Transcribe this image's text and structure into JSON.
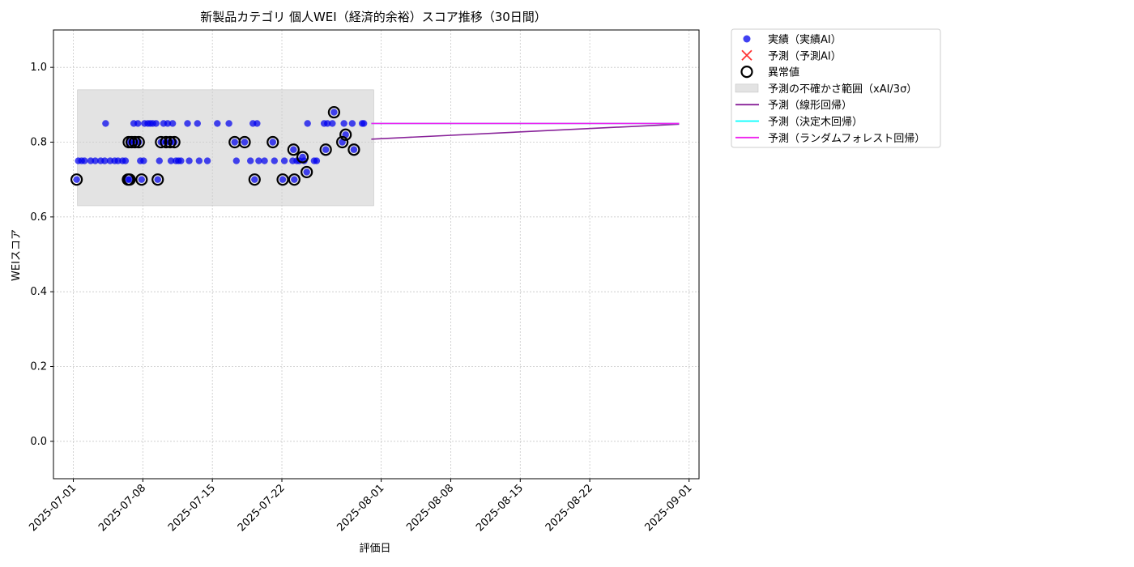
{
  "chart_data": {
    "type": "scatter",
    "title": "新製品カテゴリ 個人WEI（経済的余裕）スコア推移（30日間）",
    "xlabel": "評価日",
    "ylabel": "WEIスコア",
    "xlim": [
      "2025-06-29",
      "2025-09-02"
    ],
    "ylim": [
      -0.1,
      1.1
    ],
    "yticks": [
      0.0,
      0.2,
      0.4,
      0.6,
      0.8,
      1.0
    ],
    "xticks": [
      "2025-07-01",
      "2025-07-08",
      "2025-07-15",
      "2025-07-22",
      "2025-08-01",
      "2025-08-08",
      "2025-08-15",
      "2025-08-22",
      "2025-09-01"
    ],
    "grid": true,
    "legend_position": "outside-upper-right",
    "uncertainty_band": {
      "x_start": "2025-07-01 10:00",
      "x_end": "2025-07-31 06:00",
      "y_low": 0.63,
      "y_high": 0.94,
      "label": "予測の不確かさ範囲（xAI/3σ）",
      "color": "#cccccc"
    },
    "series": [
      {
        "name": "実績（実績AI）",
        "kind": "scatter",
        "color": "#0000ee",
        "points": [
          [
            "2025-07-01 08:00",
            0.7
          ],
          [
            "2025-07-01 12:00",
            0.75
          ],
          [
            "2025-07-01 20:00",
            0.75
          ],
          [
            "2025-07-02 03:00",
            0.75
          ],
          [
            "2025-07-02 18:00",
            0.75
          ],
          [
            "2025-07-03 05:00",
            0.75
          ],
          [
            "2025-07-03 18:00",
            0.75
          ],
          [
            "2025-07-04 04:00",
            0.75
          ],
          [
            "2025-07-04 06:00",
            0.85
          ],
          [
            "2025-07-04 17:00",
            0.75
          ],
          [
            "2025-07-05 04:00",
            0.75
          ],
          [
            "2025-07-05 12:00",
            0.75
          ],
          [
            "2025-07-05 23:00",
            0.75
          ],
          [
            "2025-07-06 06:00",
            0.75
          ],
          [
            "2025-07-06 12:00",
            0.7
          ],
          [
            "2025-07-06 16:00",
            0.7
          ],
          [
            "2025-07-06 14:00",
            0.8
          ],
          [
            "2025-07-06 21:00",
            0.8
          ],
          [
            "2025-07-07 02:00",
            0.85
          ],
          [
            "2025-07-07 05:00",
            0.8
          ],
          [
            "2025-07-07 12:00",
            0.85
          ],
          [
            "2025-07-07 14:00",
            0.8
          ],
          [
            "2025-07-07 18:00",
            0.75
          ],
          [
            "2025-07-07 21:00",
            0.7
          ],
          [
            "2025-07-08 02:00",
            0.75
          ],
          [
            "2025-07-08 04:00",
            0.85
          ],
          [
            "2025-07-08 12:00",
            0.85
          ],
          [
            "2025-07-08 18:00",
            0.85
          ],
          [
            "2025-07-09 00:00",
            0.85
          ],
          [
            "2025-07-09 08:00",
            0.85
          ],
          [
            "2025-07-09 12:00",
            0.7
          ],
          [
            "2025-07-09 16:00",
            0.75
          ],
          [
            "2025-07-09 20:00",
            0.8
          ],
          [
            "2025-07-10 02:00",
            0.85
          ],
          [
            "2025-07-10 08:00",
            0.8
          ],
          [
            "2025-07-10 12:00",
            0.85
          ],
          [
            "2025-07-10 18:00",
            0.8
          ],
          [
            "2025-07-10 20:00",
            0.75
          ],
          [
            "2025-07-11 00:00",
            0.85
          ],
          [
            "2025-07-11 04:00",
            0.8
          ],
          [
            "2025-07-11 08:00",
            0.75
          ],
          [
            "2025-07-11 14:00",
            0.75
          ],
          [
            "2025-07-11 20:00",
            0.75
          ],
          [
            "2025-07-12 12:00",
            0.85
          ],
          [
            "2025-07-12 16:00",
            0.75
          ],
          [
            "2025-07-13 12:00",
            0.85
          ],
          [
            "2025-07-13 16:00",
            0.75
          ],
          [
            "2025-07-14 12:00",
            0.75
          ],
          [
            "2025-07-15 12:00",
            0.85
          ],
          [
            "2025-07-16 16:00",
            0.85
          ],
          [
            "2025-07-17 06:00",
            0.8
          ],
          [
            "2025-07-17 10:00",
            0.75
          ],
          [
            "2025-07-18 06:00",
            0.8
          ],
          [
            "2025-07-18 20:00",
            0.75
          ],
          [
            "2025-07-19 02:00",
            0.85
          ],
          [
            "2025-07-19 06:00",
            0.7
          ],
          [
            "2025-07-19 12:00",
            0.85
          ],
          [
            "2025-07-19 16:00",
            0.75
          ],
          [
            "2025-07-20 06:00",
            0.75
          ],
          [
            "2025-07-21 02:00",
            0.8
          ],
          [
            "2025-07-21 06:00",
            0.75
          ],
          [
            "2025-07-22 02:00",
            0.7
          ],
          [
            "2025-07-22 06:00",
            0.75
          ],
          [
            "2025-07-23 02:00",
            0.75
          ],
          [
            "2025-07-23 04:00",
            0.78
          ],
          [
            "2025-07-23 06:00",
            0.7
          ],
          [
            "2025-07-23 12:00",
            0.75
          ],
          [
            "2025-07-23 18:00",
            0.75
          ],
          [
            "2025-07-24 02:00",
            0.76
          ],
          [
            "2025-07-24 06:00",
            0.75
          ],
          [
            "2025-07-24 12:00",
            0.72
          ],
          [
            "2025-07-24 14:00",
            0.85
          ],
          [
            "2025-07-25 06:00",
            0.75
          ],
          [
            "2025-07-25 12:00",
            0.75
          ],
          [
            "2025-07-26 06:00",
            0.85
          ],
          [
            "2025-07-26 10:00",
            0.78
          ],
          [
            "2025-07-26 14:00",
            0.85
          ],
          [
            "2025-07-27 02:00",
            0.85
          ],
          [
            "2025-07-27 06:00",
            0.88
          ],
          [
            "2025-07-28 02:00",
            0.8
          ],
          [
            "2025-07-28 06:00",
            0.85
          ],
          [
            "2025-07-28 10:00",
            0.82
          ],
          [
            "2025-07-29 02:00",
            0.85
          ],
          [
            "2025-07-29 06:00",
            0.78
          ],
          [
            "2025-07-30 02:00",
            0.85
          ],
          [
            "2025-07-30 06:00",
            0.85
          ]
        ]
      },
      {
        "name": "予測（予測AI）",
        "kind": "scatter",
        "color": "#ff3333",
        "points": []
      },
      {
        "name": "異常値",
        "kind": "scatter-outline",
        "color": "#000000",
        "points": [
          [
            "2025-07-01 08:00",
            0.7
          ],
          [
            "2025-07-06 12:00",
            0.7
          ],
          [
            "2025-07-06 16:00",
            0.7
          ],
          [
            "2025-07-06 14:00",
            0.8
          ],
          [
            "2025-07-06 21:00",
            0.8
          ],
          [
            "2025-07-07 05:00",
            0.8
          ],
          [
            "2025-07-07 14:00",
            0.8
          ],
          [
            "2025-07-07 21:00",
            0.7
          ],
          [
            "2025-07-09 12:00",
            0.7
          ],
          [
            "2025-07-09 20:00",
            0.8
          ],
          [
            "2025-07-10 08:00",
            0.8
          ],
          [
            "2025-07-10 18:00",
            0.8
          ],
          [
            "2025-07-11 04:00",
            0.8
          ],
          [
            "2025-07-17 06:00",
            0.8
          ],
          [
            "2025-07-18 06:00",
            0.8
          ],
          [
            "2025-07-19 06:00",
            0.7
          ],
          [
            "2025-07-21 02:00",
            0.8
          ],
          [
            "2025-07-22 02:00",
            0.7
          ],
          [
            "2025-07-23 04:00",
            0.78
          ],
          [
            "2025-07-23 06:00",
            0.7
          ],
          [
            "2025-07-24 02:00",
            0.76
          ],
          [
            "2025-07-24 12:00",
            0.72
          ],
          [
            "2025-07-26 10:00",
            0.78
          ],
          [
            "2025-07-27 06:00",
            0.88
          ],
          [
            "2025-07-28 02:00",
            0.8
          ],
          [
            "2025-07-28 10:00",
            0.82
          ],
          [
            "2025-07-29 06:00",
            0.78
          ]
        ]
      },
      {
        "name": "予測（線形回帰）",
        "kind": "line",
        "color": "#882299",
        "points": [
          [
            "2025-07-31 00:00",
            0.808
          ],
          [
            "2025-08-31 00:00",
            0.848
          ]
        ]
      },
      {
        "name": "予測（決定木回帰）",
        "kind": "line",
        "color": "#00ffff",
        "points": [
          [
            "2025-07-31 00:00",
            0.85
          ],
          [
            "2025-08-31 00:00",
            0.85
          ]
        ]
      },
      {
        "name": "予測（ランダムフォレスト回帰）",
        "kind": "line",
        "color": "#ee22ee",
        "points": [
          [
            "2025-07-31 00:00",
            0.85
          ],
          [
            "2025-08-31 00:00",
            0.85
          ]
        ]
      }
    ]
  }
}
